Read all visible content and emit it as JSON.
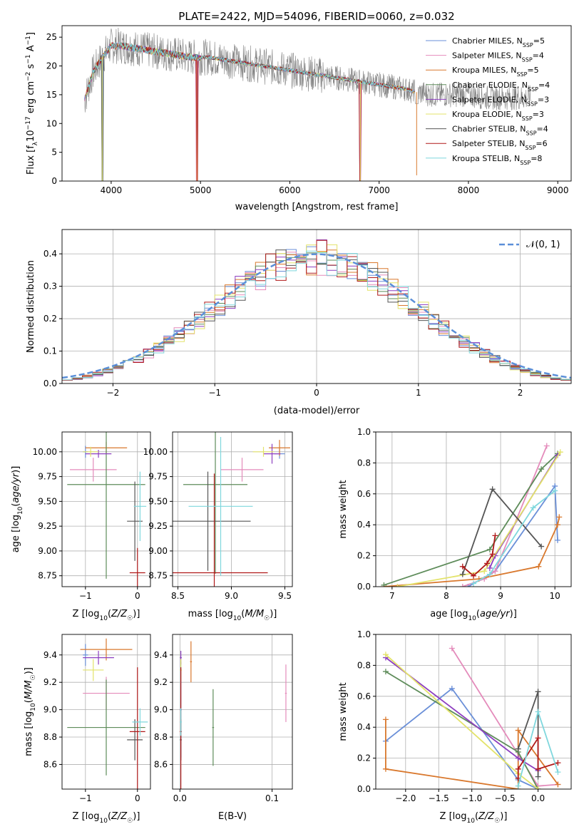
{
  "colors": {
    "Chabrier MILES": "#6a8fd8",
    "Salpeter MILES": "#e48bbb",
    "Kroupa MILES": "#d9782d",
    "Chabrier ELODIE": "#5e8c5a",
    "Salpeter ELODIE": "#8d3fc0",
    "Kroupa ELODIE": "#e3e36a",
    "Chabrier STELIB": "#555555",
    "Salpeter STELIB": "#b01919",
    "Kroupa STELIB": "#7fd7dd",
    "data": "#808080",
    "normal": "#5b8fd8",
    "grid": "#b0b0b0"
  },
  "chart_data": [
    {
      "id": "spectrum",
      "type": "line",
      "title": "PLATE=2422, MJD=54096, FIBERID=0060, z=0.032",
      "xlabel": "wavelength [Angstrom, rest frame]",
      "ylabel": "Flux [fλ10⁻¹⁷ erg cm⁻² s⁻¹ A⁻¹]",
      "xlim": [
        3450,
        9150
      ],
      "ylim": [
        0,
        27
      ],
      "xticks": [
        4000,
        5000,
        6000,
        7000,
        8000,
        9000
      ],
      "yticks": [
        0,
        5,
        10,
        15,
        20,
        25
      ],
      "grid": false,
      "legend_position": "top-right",
      "legend": [
        {
          "name": "Chabrier MILES",
          "nssp": "5"
        },
        {
          "name": "Salpeter MILES",
          "nssp": "4"
        },
        {
          "name": "Kroupa MILES",
          "nssp": "5"
        },
        {
          "name": "Chabrier ELODIE",
          "nssp": "4"
        },
        {
          "name": "Salpeter ELODIE",
          "nssp": "3"
        },
        {
          "name": "Kroupa ELODIE",
          "nssp": "3"
        },
        {
          "name": "Chabrier STELIB",
          "nssp": "4"
        },
        {
          "name": "Salpeter STELIB",
          "nssp": "6"
        },
        {
          "name": "Kroupa STELIB",
          "nssp": "8"
        }
      ],
      "continuum": [
        [
          3700,
          14
        ],
        [
          3800,
          19
        ],
        [
          3900,
          21.5
        ],
        [
          4000,
          23.5
        ],
        [
          4100,
          23.5
        ],
        [
          4300,
          23
        ],
        [
          4500,
          22.5
        ],
        [
          4700,
          22
        ],
        [
          4900,
          21.5
        ],
        [
          5100,
          21.5
        ],
        [
          5300,
          21
        ],
        [
          5500,
          20.5
        ],
        [
          5700,
          20
        ],
        [
          5900,
          19.5
        ],
        [
          6100,
          19
        ],
        [
          6300,
          18.5
        ],
        [
          6500,
          18
        ],
        [
          6700,
          17.5
        ],
        [
          6900,
          17
        ],
        [
          7100,
          16.5
        ],
        [
          7300,
          16
        ],
        [
          7400,
          15.5
        ],
        [
          7600,
          15
        ],
        [
          7800,
          15
        ],
        [
          8000,
          15
        ],
        [
          8200,
          14.5
        ],
        [
          8400,
          14.5
        ],
        [
          8600,
          14.5
        ],
        [
          8700,
          14.5
        ]
      ],
      "dips": [
        [
          3900,
          0
        ],
        [
          4960,
          0
        ],
        [
          6790,
          0
        ],
        [
          7420,
          1
        ]
      ]
    },
    {
      "id": "residuals",
      "type": "histogram",
      "xlabel": "(data-model)/error",
      "ylabel": "Normed distribution",
      "xlim": [
        -2.5,
        2.5
      ],
      "ylim": [
        0,
        0.475
      ],
      "xticks": [
        -2,
        -1,
        0,
        1,
        2
      ],
      "yticks": [
        0.0,
        0.1,
        0.2,
        0.3,
        0.4
      ],
      "grid": true,
      "legend_position": "top-right",
      "normal_label": "𝒩(0, 1)",
      "bins": {
        "start": -2.5,
        "width": 0.1,
        "count": 50
      }
    },
    {
      "id": "age_vs_Z",
      "type": "errorbar",
      "xlabel": "Z [log10(Z/Z☉)]",
      "ylabel": "age  [log10(age/yr)]",
      "xlim": [
        -1.45,
        0.25
      ],
      "ylim": [
        8.64,
        10.2
      ],
      "xticks": [
        -1,
        0
      ],
      "yticks": [
        8.75,
        9.0,
        9.25,
        9.5,
        9.75,
        10.0
      ],
      "points": [
        {
          "s": "Chabrier MILES",
          "x": -1.0,
          "y": 10.0,
          "xe": 0.05,
          "ye": 0.06
        },
        {
          "s": "Salpeter MILES",
          "x": -0.85,
          "y": 9.82,
          "xe": 0.45,
          "ye": 0.12
        },
        {
          "s": "Kroupa MILES",
          "x": -0.6,
          "y": 10.04,
          "xe": 0.4,
          "ye": 0.06
        },
        {
          "s": "Chabrier ELODIE",
          "x": -0.6,
          "y": 9.67,
          "xe": 0.75,
          "ye": 0.95
        },
        {
          "s": "Salpeter ELODIE",
          "x": -0.75,
          "y": 9.98,
          "xe": 0.25,
          "ye": 0.04
        },
        {
          "s": "Kroupa ELODIE",
          "x": -0.9,
          "y": 10.0,
          "xe": 0.15,
          "ye": 0.05
        },
        {
          "s": "Chabrier STELIB",
          "x": -0.05,
          "y": 9.3,
          "xe": 0.15,
          "ye": 0.4
        },
        {
          "s": "Salpeter STELIB",
          "x": 0.0,
          "y": 8.78,
          "xe": 0.15,
          "ye": 0.25
        },
        {
          "s": "Kroupa STELIB",
          "x": 0.05,
          "y": 9.45,
          "xe": 0.12,
          "ye": 0.35
        }
      ]
    },
    {
      "id": "age_vs_mass",
      "type": "errorbar",
      "xlabel": "mass [log10(M/M☉)]",
      "ylabel": "",
      "xlim": [
        8.45,
        9.57
      ],
      "ylim": [
        8.64,
        10.2
      ],
      "xticks": [
        8.5,
        9.0,
        9.5
      ],
      "yticks": [
        8.75,
        9.0,
        9.25,
        9.5,
        9.75,
        10.0
      ],
      "points": [
        {
          "s": "Chabrier MILES",
          "x": 9.45,
          "y": 9.98,
          "xe": 0.05,
          "ye": 0.05
        },
        {
          "s": "Salpeter MILES",
          "x": 9.1,
          "y": 9.82,
          "xe": 0.2,
          "ye": 0.12
        },
        {
          "s": "Kroupa MILES",
          "x": 9.45,
          "y": 10.04,
          "xe": 0.1,
          "ye": 0.08
        },
        {
          "s": "Chabrier ELODIE",
          "x": 8.85,
          "y": 9.67,
          "xe": 0.3,
          "ye": 0.9
        },
        {
          "s": "Salpeter ELODIE",
          "x": 9.38,
          "y": 9.98,
          "xe": 0.08,
          "ye": 0.1
        },
        {
          "s": "Kroupa ELODIE",
          "x": 9.3,
          "y": 10.0,
          "xe": 0.1,
          "ye": 0.05
        },
        {
          "s": "Chabrier STELIB",
          "x": 8.78,
          "y": 9.3,
          "xe": 0.4,
          "ye": 0.5
        },
        {
          "s": "Salpeter STELIB",
          "x": 8.84,
          "y": 8.78,
          "xe": 0.5,
          "ye": 1.0
        },
        {
          "s": "Kroupa STELIB",
          "x": 8.9,
          "y": 9.45,
          "xe": 0.3,
          "ye": 0.7
        }
      ]
    },
    {
      "id": "weight_vs_age",
      "type": "line",
      "xlabel": "age  [log10(age/yr)]",
      "ylabel": "mass weight",
      "xlim": [
        6.7,
        10.3
      ],
      "ylim": [
        0,
        1.0
      ],
      "xticks": [
        7,
        8,
        9,
        10
      ],
      "yticks": [
        0.0,
        0.2,
        0.4,
        0.6,
        0.8,
        1.0
      ],
      "grid": true,
      "series": [
        {
          "s": "Chabrier MILES",
          "points": [
            [
              8.4,
              0.0
            ],
            [
              8.9,
              0.1
            ],
            [
              10.0,
              0.65
            ],
            [
              10.05,
              0.3
            ]
          ]
        },
        {
          "s": "Salpeter MILES",
          "points": [
            [
              8.3,
              0.0
            ],
            [
              8.7,
              0.05
            ],
            [
              8.9,
              0.1
            ],
            [
              9.85,
              0.91
            ]
          ]
        },
        {
          "s": "Kroupa MILES",
          "points": [
            [
              6.85,
              0.0
            ],
            [
              8.6,
              0.05
            ],
            [
              9.7,
              0.13
            ],
            [
              10.05,
              0.4
            ],
            [
              10.08,
              0.45
            ]
          ]
        },
        {
          "s": "Chabrier ELODIE",
          "points": [
            [
              6.85,
              0.01
            ],
            [
              8.8,
              0.24
            ],
            [
              9.75,
              0.76
            ],
            [
              10.05,
              0.86
            ]
          ]
        },
        {
          "s": "Salpeter ELODIE",
          "points": [
            [
              8.8,
              0.12
            ],
            [
              8.9,
              0.2
            ],
            [
              10.05,
              0.85
            ]
          ]
        },
        {
          "s": "Kroupa ELODIE",
          "points": [
            [
              7.1,
              0.0
            ],
            [
              8.7,
              0.1
            ],
            [
              10.1,
              0.87
            ]
          ]
        },
        {
          "s": "Chabrier STELIB",
          "points": [
            [
              8.3,
              0.08
            ],
            [
              8.85,
              0.63
            ],
            [
              9.75,
              0.26
            ]
          ]
        },
        {
          "s": "Salpeter STELIB",
          "points": [
            [
              8.3,
              0.13
            ],
            [
              8.5,
              0.07
            ],
            [
              8.75,
              0.15
            ],
            [
              8.85,
              0.21
            ],
            [
              8.9,
              0.33
            ]
          ]
        },
        {
          "s": "Kroupa STELIB",
          "points": [
            [
              8.5,
              0.02
            ],
            [
              8.8,
              0.08
            ],
            [
              9.6,
              0.51
            ],
            [
              10.0,
              0.62
            ]
          ]
        }
      ]
    },
    {
      "id": "mass_vs_Z",
      "type": "errorbar",
      "xlabel": "Z [log10(Z/Z☉)]",
      "ylabel": "mass [log10(M/M☉)]",
      "xlim": [
        -1.45,
        0.25
      ],
      "ylim": [
        8.42,
        9.55
      ],
      "xticks": [
        -1,
        0
      ],
      "yticks": [
        8.6,
        8.8,
        9.0,
        9.2,
        9.4
      ],
      "points": [
        {
          "s": "Chabrier MILES",
          "x": -1.0,
          "y": 9.4,
          "xe": 0.05,
          "ye": 0.08
        },
        {
          "s": "Salpeter MILES",
          "x": -0.6,
          "y": 9.12,
          "xe": 0.45,
          "ye": 0.12
        },
        {
          "s": "Kroupa MILES",
          "x": -0.6,
          "y": 9.44,
          "xe": 0.5,
          "ye": 0.08
        },
        {
          "s": "Chabrier ELODIE",
          "x": -0.6,
          "y": 8.87,
          "xe": 0.75,
          "ye": 0.35
        },
        {
          "s": "Salpeter ELODIE",
          "x": -0.75,
          "y": 9.38,
          "xe": 0.3,
          "ye": 0.05
        },
        {
          "s": "Kroupa ELODIE",
          "x": -0.85,
          "y": 9.29,
          "xe": 0.2,
          "ye": 0.08
        },
        {
          "s": "Chabrier STELIB",
          "x": -0.05,
          "y": 8.78,
          "xe": 0.15,
          "ye": 0.15
        },
        {
          "s": "Salpeter STELIB",
          "x": 0.0,
          "y": 8.84,
          "xe": 0.15,
          "ye": 0.47
        },
        {
          "s": "Kroupa STELIB",
          "x": 0.05,
          "y": 8.91,
          "xe": 0.15,
          "ye": 0.1
        }
      ]
    },
    {
      "id": "mass_vs_EBV",
      "type": "errorbar",
      "xlabel": "E(B-V)",
      "ylabel": "",
      "xlim": [
        -0.008,
        0.122
      ],
      "ylim": [
        8.42,
        9.55
      ],
      "xticks": [
        0.0,
        0.1
      ],
      "yticks": [
        8.6,
        8.8,
        9.0,
        9.2,
        9.4
      ],
      "points": [
        {
          "s": "Chabrier MILES",
          "x": 0.001,
          "y": 9.0,
          "xe": 0.001,
          "ye": 0.35
        },
        {
          "s": "Salpeter MILES",
          "x": 0.115,
          "y": 9.12,
          "xe": 0.001,
          "ye": 0.21
        },
        {
          "s": "Kroupa MILES",
          "x": 0.012,
          "y": 9.35,
          "xe": 0.001,
          "ye": 0.15
        },
        {
          "s": "Chabrier ELODIE",
          "x": 0.036,
          "y": 8.87,
          "xe": 0.001,
          "ye": 0.28
        },
        {
          "s": "Salpeter ELODIE",
          "x": 0.001,
          "y": 9.38,
          "xe": 0.001,
          "ye": 0.05
        },
        {
          "s": "Kroupa ELODIE",
          "x": 0.001,
          "y": 9.29,
          "xe": 0.001,
          "ye": 0.08
        },
        {
          "s": "Chabrier STELIB",
          "x": 0.001,
          "y": 8.78,
          "xe": 0.001,
          "ye": 0.15
        },
        {
          "s": "Salpeter STELIB",
          "x": 0.001,
          "y": 8.84,
          "xe": 0.001,
          "ye": 0.47
        },
        {
          "s": "Kroupa STELIB",
          "x": 0.001,
          "y": 8.91,
          "xe": 0.001,
          "ye": 0.1
        }
      ]
    },
    {
      "id": "weight_vs_Z",
      "type": "line",
      "xlabel": "Z [log10(Z/Z☉)]",
      "ylabel": "mass weight",
      "xlim": [
        -2.45,
        0.5
      ],
      "ylim": [
        0,
        1.0
      ],
      "xticks": [
        -2.0,
        -1.5,
        -1.0,
        -0.5,
        0.0
      ],
      "yticks": [
        0.0,
        0.2,
        0.4,
        0.6,
        0.8,
        1.0
      ],
      "grid": true,
      "series": [
        {
          "s": "Chabrier MILES",
          "points": [
            [
              -2.3,
              0.31
            ],
            [
              -1.3,
              0.65
            ],
            [
              -0.3,
              0.06
            ],
            [
              0.0,
              0.0
            ]
          ]
        },
        {
          "s": "Salpeter MILES",
          "points": [
            [
              -1.3,
              0.91
            ],
            [
              0.0,
              0.02
            ],
            [
              0.3,
              0.03
            ]
          ]
        },
        {
          "s": "Kroupa MILES",
          "points": [
            [
              -2.3,
              0.45
            ],
            [
              -2.3,
              0.13
            ],
            [
              -0.3,
              0.0
            ],
            [
              -0.3,
              0.38
            ],
            [
              0.3,
              0.03
            ]
          ]
        },
        {
          "s": "Chabrier ELODIE",
          "points": [
            [
              -2.3,
              0.76
            ],
            [
              -0.3,
              0.24
            ],
            [
              0.0,
              0.0
            ]
          ]
        },
        {
          "s": "Salpeter ELODIE",
          "points": [
            [
              -2.3,
              0.85
            ],
            [
              -0.3,
              0.2
            ],
            [
              0.0,
              0.12
            ]
          ]
        },
        {
          "s": "Kroupa ELODIE",
          "points": [
            [
              -2.3,
              0.87
            ],
            [
              -0.3,
              0.1
            ],
            [
              0.0,
              0.0
            ]
          ]
        },
        {
          "s": "Chabrier STELIB",
          "points": [
            [
              -0.3,
              0.26
            ],
            [
              0.0,
              0.63
            ],
            [
              0.0,
              0.08
            ]
          ]
        },
        {
          "s": "Salpeter STELIB",
          "points": [
            [
              -0.3,
              0.07
            ],
            [
              -0.3,
              0.13
            ],
            [
              0.0,
              0.33
            ],
            [
              0.0,
              0.13
            ],
            [
              0.3,
              0.17
            ]
          ]
        },
        {
          "s": "Kroupa STELIB",
          "points": [
            [
              -0.3,
              0.02
            ],
            [
              0.0,
              0.5
            ],
            [
              0.3,
              0.11
            ]
          ]
        }
      ]
    }
  ]
}
